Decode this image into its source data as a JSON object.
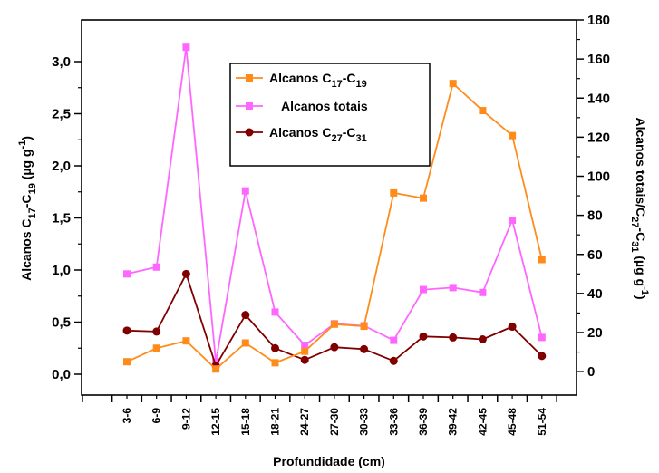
{
  "chart_data": {
    "type": "line",
    "xlabel": "Profundidade (cm)",
    "ylabel_left": {
      "main": "Alcanos C",
      "sub1": "17",
      "mid": "-C",
      "sub2": "19",
      "unit_open": " (µg g",
      "sup": "-1",
      "unit_close": ")"
    },
    "ylabel_right": {
      "main": "Alcanos totais/C",
      "sub1": "27",
      "mid": "-C",
      "sub2": "31",
      "unit_open": " (µg g",
      "sup": "-1",
      "unit_close": ")"
    },
    "categories": [
      "3-6",
      "6-9",
      "9-12",
      "12-15",
      "15-18",
      "18-21",
      "24-27",
      "27-30",
      "30-33",
      "33-36",
      "36-39",
      "39-42",
      "42-45",
      "45-48",
      "51-54"
    ],
    "ylim_left": [
      -0.2,
      3.4
    ],
    "yticks_left": [
      "0,0",
      "0,5",
      "1,0",
      "1,5",
      "2,0",
      "2,5",
      "3,0"
    ],
    "ylim_right": [
      -12,
      180
    ],
    "yticks_right": [
      "0",
      "20",
      "40",
      "60",
      "80",
      "100",
      "120",
      "140",
      "160",
      "180"
    ],
    "series": [
      {
        "name": {
          "main": "Alcanos C",
          "sub1": "17",
          "mid": "-C",
          "sub2": "19"
        },
        "axis": "left",
        "color": "#FF8C1A",
        "marker": "square",
        "values": [
          0.12,
          0.25,
          0.32,
          0.05,
          0.3,
          0.11,
          0.22,
          0.48,
          0.46,
          1.74,
          1.69,
          2.79,
          2.53,
          2.29,
          1.1
        ]
      },
      {
        "name": {
          "main": "Alcanos totais"
        },
        "axis": "right",
        "color": "#FF66FF",
        "marker": "square",
        "values": [
          50.0,
          53.5,
          166.0,
          5.0,
          92.5,
          30.5,
          13.5,
          24.5,
          23.5,
          16.0,
          42.0,
          43.0,
          40.5,
          77.5,
          17.5
        ]
      },
      {
        "name": {
          "main": "Alcanos C",
          "sub1": "27",
          "mid": "-C",
          "sub2": "31"
        },
        "axis": "right",
        "color": "#800000",
        "marker": "circle",
        "values": [
          21.0,
          20.5,
          50.0,
          3.0,
          29.0,
          12.0,
          6.0,
          12.5,
          11.5,
          5.5,
          18.0,
          17.5,
          16.5,
          23.0,
          8.0
        ]
      }
    ],
    "legend": "top-center",
    "grid": false
  }
}
